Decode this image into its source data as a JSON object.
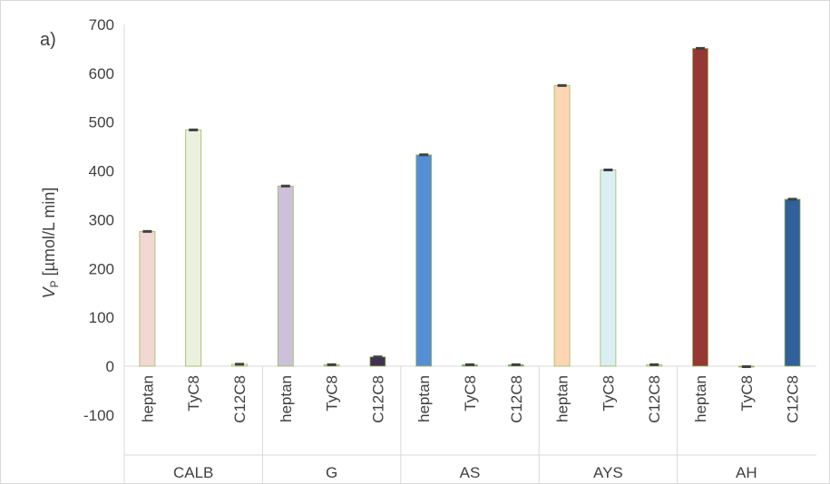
{
  "chart_data": {
    "type": "bar",
    "panel_label": "a)",
    "ylabel": {
      "main": "V",
      "sub": "P",
      "rest": " [µmol/L min]"
    },
    "ylim": [
      -100,
      700
    ],
    "yticks": [
      -100,
      0,
      100,
      200,
      300,
      400,
      500,
      600,
      700
    ],
    "grid": false,
    "error_bars": true,
    "groups": [
      {
        "name": "CALB",
        "categories": [
          "heptan",
          "TyC8",
          "C12C8"
        ],
        "values": [
          276,
          484,
          4
        ],
        "colors": [
          "#f2d7d5",
          "#ebf1de",
          "#ebf1de"
        ]
      },
      {
        "name": "G",
        "categories": [
          "heptan",
          "TyC8",
          "C12C8"
        ],
        "values": [
          369,
          3,
          19
        ],
        "colors": [
          "#ccc0da",
          "#ccc0da",
          "#403152"
        ]
      },
      {
        "name": "AS",
        "categories": [
          "heptan",
          "TyC8",
          "C12C8"
        ],
        "values": [
          433,
          3,
          3
        ],
        "colors": [
          "#558ed5",
          "#558ed5",
          "#558ed5"
        ]
      },
      {
        "name": "AYS",
        "categories": [
          "heptan",
          "TyC8",
          "C12C8"
        ],
        "values": [
          575,
          402,
          3
        ],
        "colors": [
          "#fcd5b5",
          "#dbeef4",
          "#dbeef4"
        ]
      },
      {
        "name": "AH",
        "categories": [
          "heptan",
          "TyC8",
          "C12C8"
        ],
        "values": [
          651,
          -1,
          342
        ],
        "colors": [
          "#953735",
          "#953735",
          "#31609a"
        ]
      }
    ]
  }
}
